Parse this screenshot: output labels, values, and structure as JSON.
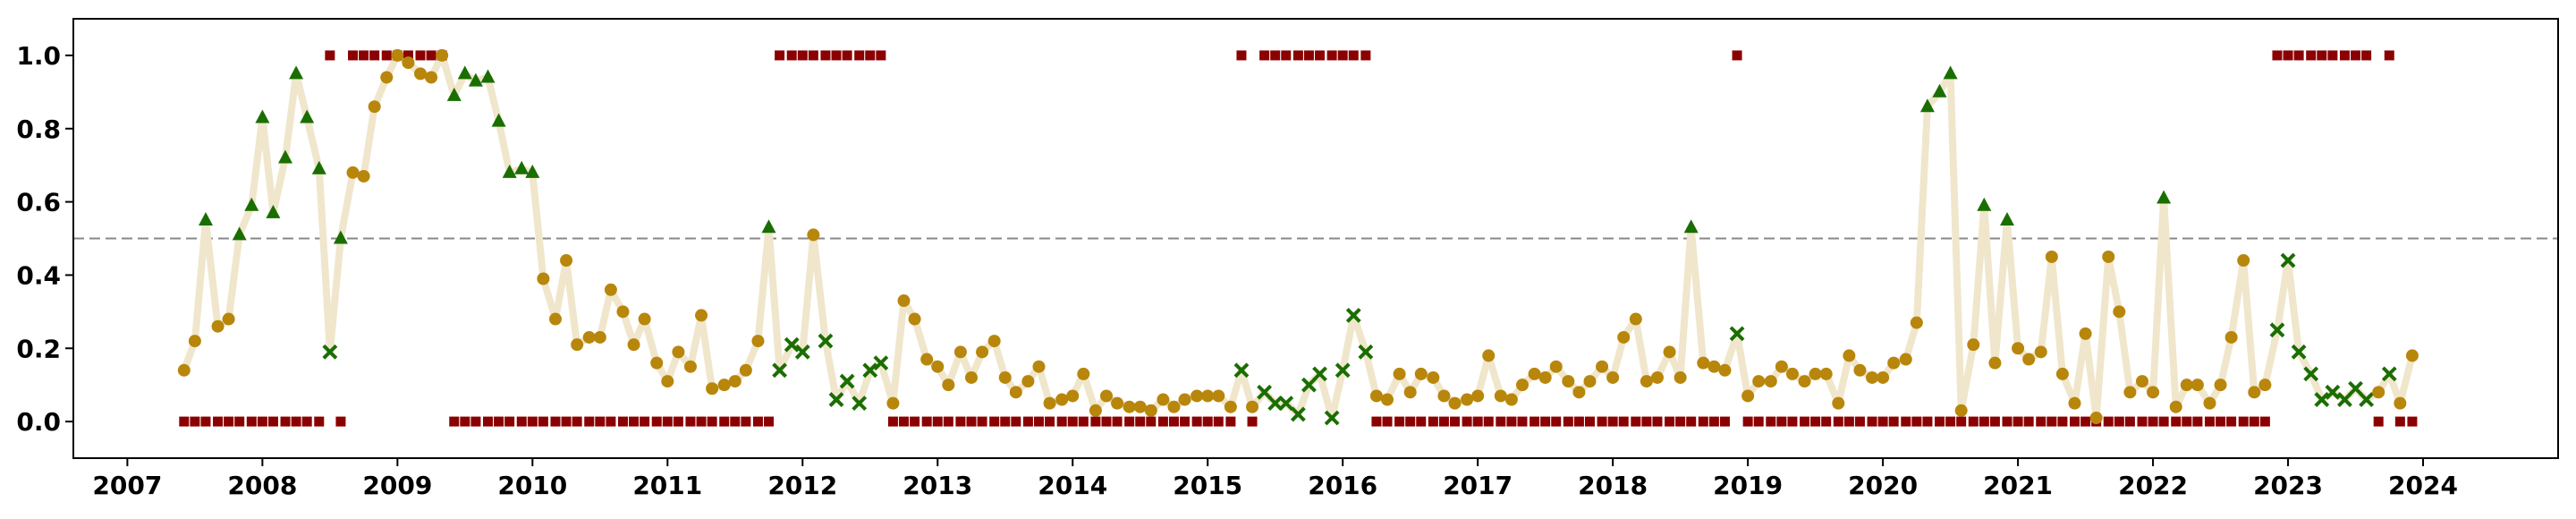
{
  "chart_data": {
    "type": "scatter",
    "title": "",
    "xlabel": "",
    "ylabel": "",
    "xlim": [
      2006.6,
      2025.0
    ],
    "ylim": [
      -0.1,
      1.1
    ],
    "x_ticks": [
      "2007",
      "2008",
      "2009",
      "2010",
      "2011",
      "2012",
      "2013",
      "2014",
      "2015",
      "2016",
      "2017",
      "2018",
      "2019",
      "2020",
      "2021",
      "2022",
      "2023",
      "2024"
    ],
    "y_ticks": [
      "0.0",
      "0.2",
      "0.4",
      "0.6",
      "0.8",
      "1.0"
    ],
    "grid": false,
    "legend": "none",
    "threshold": 0.5,
    "colors": {
      "line": "#f0e6cc",
      "circle": "#b8860b",
      "triangle": "#1a6e00",
      "cross": "#1a6e00",
      "square": "#8b0000",
      "threshold": "#888888",
      "axis": "#000000"
    },
    "x": [
      2007.42,
      2007.5,
      2007.58,
      2007.67,
      2007.75,
      2007.83,
      2007.92,
      2008.0,
      2008.08,
      2008.17,
      2008.25,
      2008.33,
      2008.42,
      2008.5,
      2008.58,
      2008.67,
      2008.75,
      2008.83,
      2008.92,
      2009.0,
      2009.08,
      2009.17,
      2009.25,
      2009.33,
      2009.42,
      2009.5,
      2009.58,
      2009.67,
      2009.75,
      2009.83,
      2009.92,
      2010.0,
      2010.08,
      2010.17,
      2010.25,
      2010.33,
      2010.42,
      2010.5,
      2010.58,
      2010.67,
      2010.75,
      2010.83,
      2010.92,
      2011.0,
      2011.08,
      2011.17,
      2011.25,
      2011.33,
      2011.42,
      2011.5,
      2011.58,
      2011.67,
      2011.75,
      2011.83,
      2011.92,
      2012.0,
      2012.08,
      2012.17,
      2012.25,
      2012.33,
      2012.42,
      2012.5,
      2012.58,
      2012.67,
      2012.75,
      2012.83,
      2012.92,
      2013.0,
      2013.08,
      2013.17,
      2013.25,
      2013.33,
      2013.42,
      2013.5,
      2013.58,
      2013.67,
      2013.75,
      2013.83,
      2013.92,
      2014.0,
      2014.08,
      2014.17,
      2014.25,
      2014.33,
      2014.42,
      2014.5,
      2014.58,
      2014.67,
      2014.75,
      2014.83,
      2014.92,
      2015.0,
      2015.08,
      2015.17,
      2015.25,
      2015.33,
      2015.42,
      2015.5,
      2015.58,
      2015.67,
      2015.75,
      2015.83,
      2015.92,
      2016.0,
      2016.08,
      2016.17,
      2016.25,
      2016.33,
      2016.42,
      2016.5,
      2016.58,
      2016.67,
      2016.75,
      2016.83,
      2016.92,
      2017.0,
      2017.08,
      2017.17,
      2017.25,
      2017.33,
      2017.42,
      2017.5,
      2017.58,
      2017.67,
      2017.75,
      2017.83,
      2017.92,
      2018.0,
      2018.08,
      2018.17,
      2018.25,
      2018.33,
      2018.42,
      2018.5,
      2018.58,
      2018.67,
      2018.75,
      2018.83,
      2018.92,
      2019.0,
      2019.08,
      2019.17,
      2019.25,
      2019.33,
      2019.42,
      2019.5,
      2019.58,
      2019.67,
      2019.75,
      2019.83,
      2019.92,
      2020.0,
      2020.08,
      2020.17,
      2020.25,
      2020.33,
      2020.42,
      2020.5,
      2020.58,
      2020.67,
      2020.75,
      2020.83,
      2020.92,
      2021.0,
      2021.08,
      2021.17,
      2021.25,
      2021.33,
      2021.42,
      2021.5,
      2021.58,
      2021.67,
      2021.75,
      2021.83,
      2021.92,
      2022.0,
      2022.08,
      2022.17,
      2022.25,
      2022.33,
      2022.42,
      2022.5,
      2022.58,
      2022.67,
      2022.75,
      2022.83,
      2022.92,
      2023.0,
      2023.08,
      2023.17,
      2023.25,
      2023.33,
      2023.42,
      2023.5,
      2023.58,
      2023.67,
      2023.75,
      2023.83,
      2023.92
    ],
    "series": [
      {
        "values": [
          0.14,
          0.22,
          0.55,
          0.26,
          0.28,
          0.51,
          0.59,
          0.83,
          0.57,
          0.72,
          0.95,
          0.83,
          0.69,
          0.19,
          0.5,
          0.68,
          0.67,
          0.86,
          0.94,
          1.0,
          0.98,
          0.95,
          0.94,
          1.0,
          0.89,
          0.95,
          0.93,
          0.94,
          0.82,
          0.68,
          0.69,
          0.68,
          0.39,
          0.28,
          0.44,
          0.21,
          0.23,
          0.23,
          0.36,
          0.3,
          0.21,
          0.28,
          0.16,
          0.11,
          0.19,
          0.15,
          0.29,
          0.09,
          0.1,
          0.11,
          0.14,
          0.22,
          0.53,
          0.14,
          0.21,
          0.19,
          0.51,
          0.22,
          0.06,
          0.11,
          0.05,
          0.14,
          0.16,
          0.05,
          0.33,
          0.28,
          0.17,
          0.15,
          0.1,
          0.19,
          0.12,
          0.19,
          0.22,
          0.12,
          0.08,
          0.11,
          0.15,
          0.05,
          0.06,
          0.07,
          0.13,
          0.03,
          0.07,
          0.05,
          0.04,
          0.04,
          0.03,
          0.06,
          0.04,
          0.06,
          0.07,
          0.07,
          0.07,
          0.04,
          0.14,
          0.04,
          0.08,
          0.05,
          0.05,
          0.02,
          0.1,
          0.13,
          0.01,
          0.14,
          0.29,
          0.19,
          0.07,
          0.06,
          0.13,
          0.08,
          0.13,
          0.12,
          0.07,
          0.05,
          0.06,
          0.07,
          0.18,
          0.07,
          0.06,
          0.1,
          0.13,
          0.12,
          0.15,
          0.11,
          0.08,
          0.11,
          0.15,
          0.12,
          0.23,
          0.28,
          0.11,
          0.12,
          0.19,
          0.12,
          0.53,
          0.16,
          0.15,
          0.14,
          0.24,
          0.07,
          0.11,
          0.11,
          0.15,
          0.13,
          0.11,
          0.13,
          0.13,
          0.05,
          0.18,
          0.14,
          0.12,
          0.12,
          0.16,
          0.17,
          0.27,
          0.86,
          0.9,
          0.95,
          0.03,
          0.21,
          0.59,
          0.16,
          0.55,
          0.2,
          0.17,
          0.19,
          0.45,
          0.13,
          0.05,
          0.24,
          0.01,
          0.45,
          0.3,
          0.08,
          0.11,
          0.08,
          0.61,
          0.04,
          0.1,
          0.1,
          0.05,
          0.1,
          0.23,
          0.44,
          0.08,
          0.1,
          0.25,
          0.44,
          0.19,
          0.13,
          0.06,
          0.08,
          0.06,
          0.09,
          0.06,
          0.08,
          0.13,
          0.05,
          0.18
        ],
        "markers": [
          "c",
          "c",
          "t",
          "c",
          "c",
          "t",
          "t",
          "t",
          "t",
          "t",
          "t",
          "t",
          "t",
          "x",
          "t",
          "c",
          "c",
          "c",
          "c",
          "c",
          "c",
          "c",
          "c",
          "c",
          "t",
          "t",
          "t",
          "t",
          "t",
          "t",
          "t",
          "t",
          "c",
          "c",
          "c",
          "c",
          "c",
          "c",
          "c",
          "c",
          "c",
          "c",
          "c",
          "c",
          "c",
          "c",
          "c",
          "c",
          "c",
          "c",
          "c",
          "c",
          "t",
          "x",
          "x",
          "x",
          "c",
          "x",
          "x",
          "x",
          "x",
          "x",
          "x",
          "c",
          "c",
          "c",
          "c",
          "c",
          "c",
          "c",
          "c",
          "c",
          "c",
          "c",
          "c",
          "c",
          "c",
          "c",
          "c",
          "c",
          "c",
          "c",
          "c",
          "c",
          "c",
          "c",
          "c",
          "c",
          "c",
          "c",
          "c",
          "c",
          "c",
          "c",
          "x",
          "c",
          "x",
          "x",
          "x",
          "x",
          "x",
          "x",
          "x",
          "x",
          "x",
          "x",
          "c",
          "c",
          "c",
          "c",
          "c",
          "c",
          "c",
          "c",
          "c",
          "c",
          "c",
          "c",
          "c",
          "c",
          "c",
          "c",
          "c",
          "c",
          "c",
          "c",
          "c",
          "c",
          "c",
          "c",
          "c",
          "c",
          "c",
          "c",
          "t",
          "c",
          "c",
          "c",
          "x",
          "c",
          "c",
          "c",
          "c",
          "c",
          "c",
          "c",
          "c",
          "c",
          "c",
          "c",
          "c",
          "c",
          "c",
          "c",
          "c",
          "t",
          "t",
          "t",
          "c",
          "c",
          "t",
          "c",
          "t",
          "c",
          "c",
          "c",
          "c",
          "c",
          "c",
          "c",
          "c",
          "c",
          "c",
          "c",
          "c",
          "c",
          "t",
          "c",
          "c",
          "c",
          "c",
          "c",
          "c",
          "c",
          "c",
          "c",
          "x",
          "x",
          "x",
          "x",
          "x",
          "x",
          "x",
          "x",
          "x",
          "c",
          "x",
          "c",
          "c"
        ]
      }
    ],
    "flags": {
      "x": [
        2007.42,
        2007.5,
        2007.58,
        2007.67,
        2007.75,
        2007.83,
        2007.92,
        2008.0,
        2008.08,
        2008.17,
        2008.25,
        2008.33,
        2008.42,
        2008.5,
        2008.58,
        2008.67,
        2008.75,
        2008.83,
        2008.92,
        2009.0,
        2009.08,
        2009.17,
        2009.25,
        2009.33,
        2009.42,
        2009.5,
        2009.58,
        2009.67,
        2009.75,
        2009.83,
        2009.92,
        2010.0,
        2010.08,
        2010.17,
        2010.25,
        2010.33,
        2010.42,
        2010.5,
        2010.58,
        2010.67,
        2010.75,
        2010.83,
        2010.92,
        2011.0,
        2011.08,
        2011.17,
        2011.25,
        2011.33,
        2011.42,
        2011.5,
        2011.58,
        2011.67,
        2011.75,
        2011.83,
        2011.92,
        2012.0,
        2012.08,
        2012.17,
        2012.25,
        2012.33,
        2012.42,
        2012.5,
        2012.58,
        2012.67,
        2012.75,
        2012.83,
        2012.92,
        2013.0,
        2013.08,
        2013.17,
        2013.25,
        2013.33,
        2013.42,
        2013.5,
        2013.58,
        2013.67,
        2013.75,
        2013.83,
        2013.92,
        2014.0,
        2014.08,
        2014.17,
        2014.25,
        2014.33,
        2014.42,
        2014.5,
        2014.58,
        2014.67,
        2014.75,
        2014.83,
        2014.92,
        2015.0,
        2015.08,
        2015.17,
        2015.25,
        2015.33,
        2015.42,
        2015.5,
        2015.58,
        2015.67,
        2015.75,
        2015.83,
        2015.92,
        2016.0,
        2016.08,
        2016.17,
        2016.25,
        2016.33,
        2016.42,
        2016.5,
        2016.58,
        2016.67,
        2016.75,
        2016.83,
        2016.92,
        2017.0,
        2017.08,
        2017.17,
        2017.25,
        2017.33,
        2017.42,
        2017.5,
        2017.58,
        2017.67,
        2017.75,
        2017.83,
        2017.92,
        2018.0,
        2018.08,
        2018.17,
        2018.25,
        2018.33,
        2018.42,
        2018.5,
        2018.58,
        2018.67,
        2018.75,
        2018.83,
        2018.92,
        2019.0,
        2019.08,
        2019.17,
        2019.25,
        2019.33,
        2019.42,
        2019.5,
        2019.58,
        2019.67,
        2019.75,
        2019.83,
        2019.92,
        2020.0,
        2020.08,
        2020.17,
        2020.25,
        2020.33,
        2020.42,
        2020.5,
        2020.58,
        2020.67,
        2020.75,
        2020.83,
        2020.92,
        2021.0,
        2021.08,
        2021.17,
        2021.25,
        2021.33,
        2021.42,
        2021.5,
        2021.58,
        2021.67,
        2021.75,
        2021.83,
        2021.92,
        2022.0,
        2022.08,
        2022.17,
        2022.25,
        2022.33,
        2022.42,
        2022.5,
        2022.58,
        2022.67,
        2022.75,
        2022.83,
        2022.92,
        2023.0,
        2023.08,
        2023.17,
        2023.25,
        2023.33,
        2023.42,
        2023.5,
        2023.58,
        2023.67,
        2023.75,
        2023.83,
        2023.92
      ],
      "values": [
        0,
        0,
        0,
        0,
        0,
        0,
        0,
        0,
        0,
        0,
        0,
        0,
        0,
        1,
        0,
        1,
        1,
        1,
        1,
        1,
        1,
        1,
        1,
        1,
        0,
        0,
        0,
        0,
        0,
        0,
        0,
        0,
        0,
        0,
        0,
        0,
        0,
        0,
        0,
        0,
        0,
        0,
        0,
        0,
        0,
        0,
        0,
        0,
        0,
        0,
        0,
        0,
        0,
        1,
        1,
        1,
        1,
        1,
        1,
        1,
        1,
        1,
        1,
        0,
        0,
        0,
        0,
        0,
        0,
        0,
        0,
        0,
        0,
        0,
        0,
        0,
        0,
        0,
        0,
        0,
        0,
        0,
        0,
        0,
        0,
        0,
        0,
        0,
        0,
        0,
        0,
        0,
        0,
        0,
        1,
        0,
        1,
        1,
        1,
        1,
        1,
        1,
        1,
        1,
        1,
        1,
        0,
        0,
        0,
        0,
        0,
        0,
        0,
        0,
        0,
        0,
        0,
        0,
        0,
        0,
        0,
        0,
        0,
        0,
        0,
        0,
        0,
        0,
        0,
        0,
        0,
        0,
        0,
        0,
        0,
        0,
        0,
        0,
        1,
        0,
        0,
        0,
        0,
        0,
        0,
        0,
        0,
        0,
        0,
        0,
        0,
        0,
        0,
        0,
        0,
        0,
        0,
        0,
        0,
        0,
        0,
        0,
        0,
        0,
        0,
        0,
        0,
        0,
        0,
        0,
        0,
        0,
        0,
        0,
        0,
        0,
        0,
        0,
        0,
        0,
        0,
        0,
        0,
        0,
        0,
        0,
        1,
        1,
        1,
        1,
        1,
        1,
        1,
        1,
        1,
        0,
        1,
        0,
        0
      ]
    }
  }
}
